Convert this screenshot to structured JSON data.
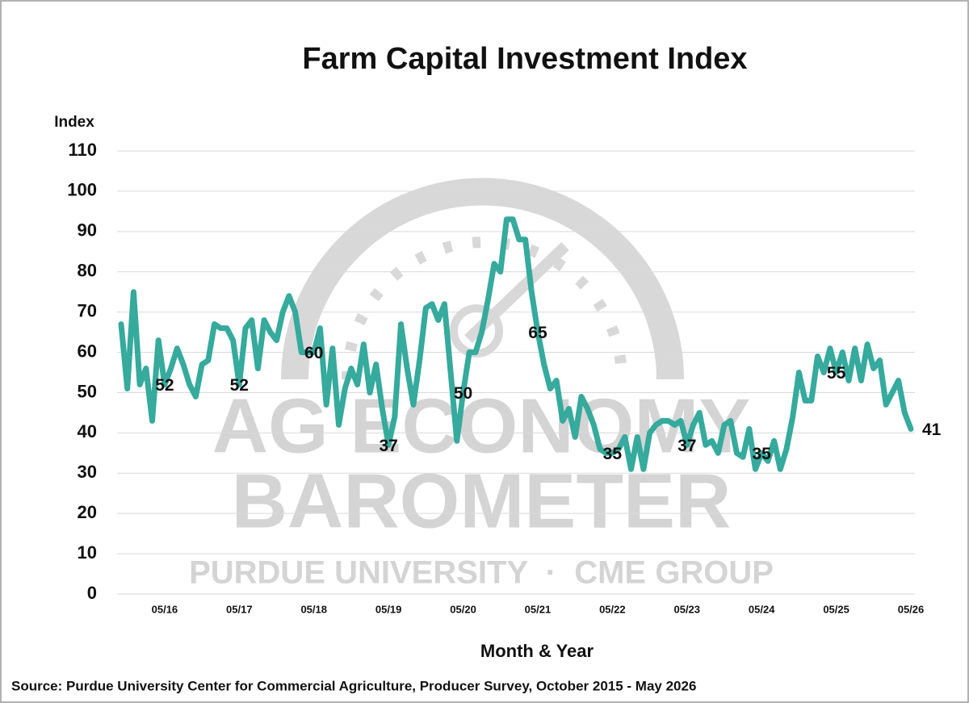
{
  "chart_data": {
    "type": "line",
    "title": "Farm Capital Investment Index",
    "y_label": "Index",
    "x_label": "Month & Year",
    "source": "Source: Purdue University Center for Commercial Agriculture, Producer Survey, October 2015 - May 2026",
    "watermark": {
      "line1": "AG ECONOMY",
      "line2": "BAROMETER",
      "line3": "PURDUE UNIVERSITY  ·  CME GROUP"
    },
    "categories": [
      null,
      null,
      null,
      null,
      null,
      null,
      null,
      "05/16",
      null,
      null,
      null,
      null,
      null,
      null,
      null,
      null,
      null,
      null,
      null,
      "05/17",
      null,
      null,
      null,
      null,
      null,
      null,
      null,
      null,
      null,
      null,
      null,
      "05/18",
      null,
      null,
      null,
      null,
      null,
      null,
      null,
      null,
      null,
      null,
      null,
      "05/19",
      null,
      null,
      null,
      null,
      null,
      null,
      null,
      null,
      null,
      null,
      null,
      "05/20",
      null,
      null,
      null,
      null,
      null,
      null,
      null,
      null,
      null,
      null,
      null,
      "05/21",
      null,
      null,
      null,
      null,
      null,
      null,
      null,
      null,
      null,
      null,
      null,
      "05/22",
      null,
      null,
      null,
      null,
      null,
      null,
      null,
      null,
      null,
      null,
      null,
      "05/23",
      null,
      null,
      null,
      null,
      null,
      null,
      null,
      null,
      null,
      null,
      null,
      "05/24",
      null,
      null,
      null,
      null,
      null,
      null,
      null,
      null,
      null,
      null,
      null,
      "05/25",
      null,
      null,
      null,
      null,
      null,
      null,
      null,
      null,
      null,
      null,
      null,
      "05/26"
    ],
    "values": [
      67,
      51,
      75,
      52,
      56,
      43,
      63,
      52,
      56,
      61,
      57,
      52,
      49,
      57,
      58,
      67,
      66,
      66,
      63,
      52,
      66,
      68,
      56,
      68,
      65,
      63,
      70,
      74,
      70,
      60,
      60,
      60,
      66,
      47,
      61,
      42,
      51,
      56,
      52,
      62,
      50,
      57,
      46,
      37,
      44,
      67,
      56,
      47,
      58,
      71,
      72,
      68,
      72,
      55,
      38,
      50,
      60,
      60,
      65,
      73,
      82,
      80,
      93,
      93,
      88,
      88,
      75,
      65,
      57,
      51,
      53,
      43,
      46,
      39,
      49,
      46,
      42,
      36,
      35,
      35,
      36,
      39,
      31,
      39,
      31,
      40,
      42,
      43,
      43,
      42,
      43,
      37,
      42,
      45,
      37,
      38,
      35,
      42,
      43,
      35,
      34,
      41,
      31,
      35,
      33,
      38,
      31,
      36,
      44,
      55,
      48,
      48,
      59,
      55,
      61,
      55,
      60,
      53,
      61,
      53,
      62,
      56,
      58,
      47,
      50,
      53,
      45,
      41
    ],
    "value_labels": [
      null,
      null,
      null,
      null,
      null,
      null,
      null,
      "52",
      null,
      null,
      null,
      null,
      null,
      null,
      null,
      null,
      null,
      null,
      null,
      "52",
      null,
      null,
      null,
      null,
      null,
      null,
      null,
      null,
      null,
      null,
      null,
      "60",
      null,
      null,
      null,
      null,
      null,
      null,
      null,
      null,
      null,
      null,
      null,
      "37",
      null,
      null,
      null,
      null,
      null,
      null,
      null,
      null,
      null,
      null,
      null,
      "50",
      null,
      null,
      null,
      null,
      null,
      null,
      null,
      null,
      null,
      null,
      null,
      "65",
      null,
      null,
      null,
      null,
      null,
      null,
      null,
      null,
      null,
      null,
      null,
      "35",
      null,
      null,
      null,
      null,
      null,
      null,
      null,
      null,
      null,
      null,
      null,
      "37",
      null,
      null,
      null,
      null,
      null,
      null,
      null,
      null,
      null,
      null,
      null,
      "35",
      null,
      null,
      null,
      null,
      null,
      null,
      null,
      null,
      null,
      null,
      null,
      "55",
      null,
      null,
      null,
      null,
      null,
      null,
      null,
      null,
      null,
      null,
      null,
      "41"
    ],
    "color": "#35aa9d",
    "ylim": [
      0,
      110
    ],
    "yticks": [
      0,
      10,
      20,
      30,
      40,
      50,
      60,
      70,
      80,
      90,
      100,
      110
    ],
    "grid": true
  }
}
